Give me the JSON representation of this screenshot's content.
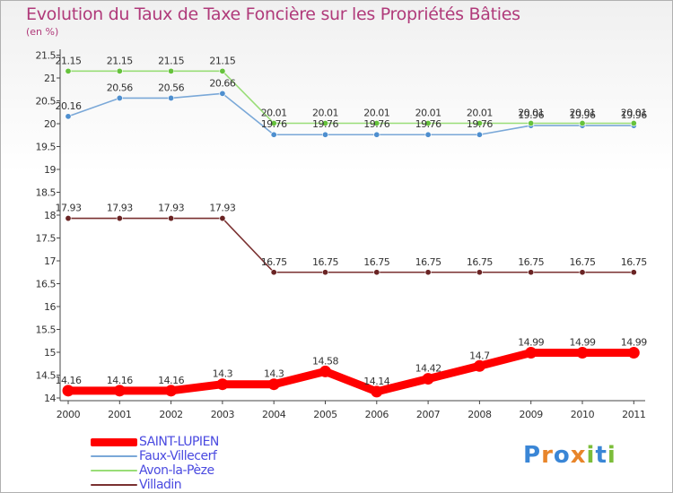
{
  "chart_data": {
    "type": "line",
    "title": "Evolution du Taux de Taxe Foncière sur les Propriétés Bâties",
    "subtitle": "(en %)",
    "xlabel": "",
    "ylabel": "",
    "x": [
      "2000",
      "2001",
      "2002",
      "2003",
      "2004",
      "2005",
      "2006",
      "2007",
      "2008",
      "2009",
      "2010",
      "2011"
    ],
    "ylim": [
      13.9,
      21.5
    ],
    "yticks": [
      14,
      14.5,
      15,
      15.5,
      16,
      16.5,
      17,
      17.5,
      18,
      18.5,
      19,
      19.5,
      20,
      20.5,
      21,
      21.5
    ],
    "ytick_labels": [
      "14",
      "14.5",
      "15",
      "15.5",
      "16",
      "16.5",
      "17",
      "17.5",
      "18",
      "18.5",
      "19",
      "19.5",
      "20",
      "20.5",
      "21",
      "21.5"
    ],
    "grid": false,
    "legend_position": "bottom-left",
    "series": [
      {
        "name": "SAINT-LUPIEN",
        "color": "#ff0000",
        "marker_color": "#ff0000",
        "emphasis": true,
        "values": [
          14.16,
          14.16,
          14.16,
          14.3,
          14.3,
          14.58,
          14.14,
          14.42,
          14.7,
          14.99,
          14.99,
          14.99
        ],
        "labels": [
          "14.16",
          "14.16",
          "14.16",
          "14.3",
          "14.3",
          "14.58",
          "14.14",
          "14.42",
          "14.7",
          "14.99",
          "14.99",
          "14.99"
        ]
      },
      {
        "name": "Faux-Villecerf",
        "color": "#7aa8d8",
        "marker_color": "#4e8fcf",
        "emphasis": false,
        "values": [
          20.16,
          20.56,
          20.56,
          20.66,
          19.76,
          19.76,
          19.76,
          19.76,
          19.76,
          19.96,
          19.96,
          19.96
        ],
        "labels": [
          "20.16",
          "20.56",
          "20.56",
          "20.66",
          "19.76",
          "19.76",
          "19.76",
          "19.76",
          "19.76",
          "19.96",
          "19.96",
          "19.96"
        ]
      },
      {
        "name": "Avon-la-Pèze",
        "color": "#99dd77",
        "marker_color": "#66c23c",
        "emphasis": false,
        "values": [
          21.15,
          21.15,
          21.15,
          21.15,
          20.01,
          20.01,
          20.01,
          20.01,
          20.01,
          20.01,
          20.01,
          20.01
        ],
        "labels": [
          "21.15",
          "21.15",
          "21.15",
          "21.15",
          "20.01",
          "20.01",
          "20.01",
          "20.01",
          "20.01",
          "20.01",
          "20.01",
          "20.01"
        ]
      },
      {
        "name": "Villadin",
        "color": "#7a3030",
        "marker_color": "#6a2424",
        "emphasis": false,
        "values": [
          17.93,
          17.93,
          17.93,
          17.93,
          16.75,
          16.75,
          16.75,
          16.75,
          16.75,
          16.75,
          16.75,
          16.75
        ],
        "labels": [
          "17.93",
          "17.93",
          "17.93",
          "17.93",
          "16.75",
          "16.75",
          "16.75",
          "16.75",
          "16.75",
          "16.75",
          "16.75",
          "16.75"
        ]
      }
    ]
  },
  "brand": {
    "letters": [
      "P",
      "r",
      "o",
      "x",
      "i",
      "t",
      "i"
    ],
    "colors": [
      "#3a86d6",
      "#e8852a",
      "#3a86d6",
      "#e8852a",
      "#7cbd3a",
      "#3a86d6",
      "#7cbd3a"
    ]
  }
}
